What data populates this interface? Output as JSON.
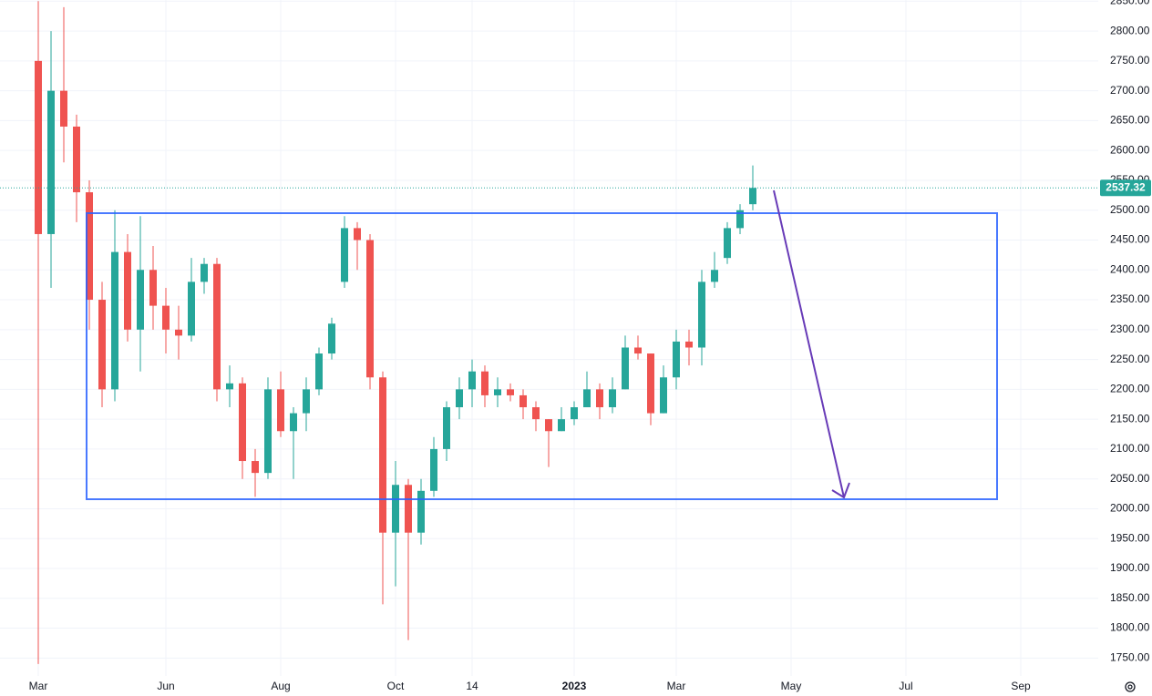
{
  "chart_data": {
    "type": "candlestick",
    "categories": [
      "Mar",
      null,
      null,
      null,
      null,
      null,
      null,
      null,
      null,
      null,
      "Jun",
      null,
      null,
      null,
      null,
      null,
      null,
      null,
      null,
      "Aug",
      null,
      null,
      null,
      null,
      null,
      null,
      null,
      null,
      "Oct",
      null,
      null,
      null,
      null,
      null,
      "14",
      null,
      null,
      null,
      null,
      null,
      null,
      null,
      "2023",
      null,
      null,
      null,
      null,
      null,
      null,
      null,
      "Mar",
      null,
      null,
      null,
      null,
      null,
      null,
      null,
      null,
      "May",
      null,
      null,
      null,
      null,
      null,
      null,
      null,
      null,
      "Jul",
      null,
      null,
      null,
      null,
      null,
      null,
      null,
      null,
      "Sep",
      null,
      null,
      null,
      null,
      null
    ],
    "open": [
      2750,
      2460,
      2700,
      2640,
      2530,
      2350,
      2200,
      2430,
      2300,
      2400,
      2340,
      2300,
      2290,
      2380,
      2410,
      2200,
      2210,
      2080,
      2060,
      2200,
      2130,
      2160,
      2200,
      2260,
      2380,
      2470,
      2450,
      2220,
      1960,
      2040,
      1960,
      2030,
      2100,
      2170,
      2200,
      2230,
      2190,
      2200,
      2190,
      2170,
      2150,
      2130,
      2150,
      2170,
      2200,
      2170,
      2200,
      2270,
      2260,
      2160,
      2220,
      2280,
      2270,
      2380,
      2420,
      2470,
      2510,
      null,
      null,
      null,
      null,
      null,
      null,
      null,
      null,
      null,
      null,
      null,
      null,
      null,
      null,
      null,
      null,
      null,
      null,
      null,
      null,
      null,
      null,
      null,
      null,
      null,
      null
    ],
    "high": [
      2850,
      2800,
      2840,
      2660,
      2550,
      2380,
      2500,
      2460,
      2490,
      2440,
      2370,
      2340,
      2420,
      2420,
      2420,
      2240,
      2220,
      2100,
      2220,
      2230,
      2170,
      2220,
      2270,
      2320,
      2490,
      2480,
      2460,
      2230,
      2080,
      2050,
      2050,
      2120,
      2180,
      2220,
      2250,
      2240,
      2220,
      2210,
      2200,
      2180,
      2150,
      2170,
      2180,
      2230,
      2210,
      2220,
      2290,
      2290,
      2260,
      2240,
      2300,
      2300,
      2400,
      2430,
      2480,
      2510,
      2575,
      null,
      null,
      null,
      null,
      null,
      null,
      null,
      null,
      null,
      null,
      null,
      null,
      null,
      null,
      null,
      null,
      null,
      null,
      null,
      null,
      null,
      null,
      null,
      null,
      null,
      null
    ],
    "low": [
      1740,
      2370,
      2580,
      2480,
      2300,
      2170,
      2180,
      2280,
      2230,
      2300,
      2260,
      2250,
      2280,
      2360,
      2180,
      2170,
      2050,
      2020,
      2050,
      2120,
      2050,
      2130,
      2190,
      2250,
      2370,
      2400,
      2200,
      1840,
      1870,
      1780,
      1940,
      2020,
      2080,
      2150,
      2170,
      2170,
      2170,
      2180,
      2150,
      2130,
      2070,
      2130,
      2140,
      2170,
      2150,
      2160,
      2200,
      2250,
      2140,
      2160,
      2200,
      2240,
      2240,
      2370,
      2410,
      2460,
      2500,
      null,
      null,
      null,
      null,
      null,
      null,
      null,
      null,
      null,
      null,
      null,
      null,
      null,
      null,
      null,
      null,
      null,
      null,
      null,
      null,
      null,
      null,
      null,
      null,
      null,
      null
    ],
    "close": [
      2460,
      2700,
      2640,
      2530,
      2350,
      2200,
      2430,
      2300,
      2400,
      2340,
      2300,
      2290,
      2380,
      2410,
      2200,
      2210,
      2080,
      2060,
      2200,
      2130,
      2160,
      2200,
      2260,
      2310,
      2470,
      2450,
      2220,
      1960,
      2040,
      1960,
      2030,
      2100,
      2170,
      2200,
      2230,
      2190,
      2200,
      2190,
      2170,
      2150,
      2130,
      2150,
      2170,
      2200,
      2170,
      2200,
      2270,
      2260,
      2160,
      2220,
      2280,
      2270,
      2380,
      2400,
      2470,
      2500,
      2537.32,
      null,
      null,
      null,
      null,
      null,
      null,
      null,
      null,
      null,
      null,
      null,
      null,
      null,
      null,
      null,
      null,
      null,
      null,
      null,
      null,
      null,
      null,
      null,
      null,
      null,
      null
    ],
    "up_color": "#26a69a",
    "down_color": "#ef5350",
    "ylim": [
      1720,
      2852
    ],
    "yticks": [
      {
        "value": 1750,
        "label": "1750.00"
      },
      {
        "value": 1800,
        "label": "1800.00"
      },
      {
        "value": 1850,
        "label": "1850.00"
      },
      {
        "value": 1900,
        "label": "1900.00"
      },
      {
        "value": 1950,
        "label": "1950.00"
      },
      {
        "value": 2000,
        "label": "2000.00"
      },
      {
        "value": 2050,
        "label": "2050.00"
      },
      {
        "value": 2100,
        "label": "2100.00"
      },
      {
        "value": 2150,
        "label": "2150.00"
      },
      {
        "value": 2200,
        "label": "2200.00"
      },
      {
        "value": 2250,
        "label": "2250.00"
      },
      {
        "value": 2300,
        "label": "2300.00"
      },
      {
        "value": 2350,
        "label": "2350.00"
      },
      {
        "value": 2400,
        "label": "2400.00"
      },
      {
        "value": 2450,
        "label": "2450.00"
      },
      {
        "value": 2500,
        "label": "2500.00"
      },
      {
        "value": 2550,
        "label": "2550.00"
      },
      {
        "value": 2600,
        "label": "2600.00"
      },
      {
        "value": 2650,
        "label": "2650.00"
      },
      {
        "value": 2700,
        "label": "2700.00"
      },
      {
        "value": 2750,
        "label": "2750.00"
      },
      {
        "value": 2800,
        "label": "2800.00"
      },
      {
        "value": 2850,
        "label": "2850.00"
      }
    ],
    "grid": true
  }
}
